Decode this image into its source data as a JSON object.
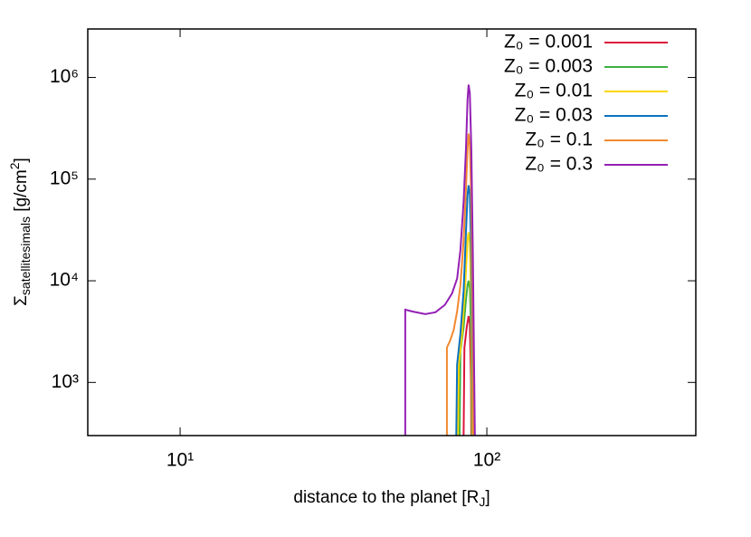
{
  "chart_data": {
    "type": "line",
    "xscale": "log",
    "yscale": "log",
    "xlim": [
      5,
      480
    ],
    "ylim": [
      300,
      3000000
    ],
    "xticks": [
      {
        "value": 10,
        "label": "10¹"
      },
      {
        "value": 100,
        "label": "10²"
      }
    ],
    "yticks": [
      {
        "value": 1000,
        "label": "10³"
      },
      {
        "value": 10000,
        "label": "10⁴"
      },
      {
        "value": 100000,
        "label": "10⁵"
      },
      {
        "value": 1000000,
        "label": "10⁶"
      }
    ],
    "x_label": [
      {
        "text": "distance to the planet [R"
      },
      {
        "text": "J",
        "sub": true
      },
      {
        "text": "]"
      }
    ],
    "y_label": [
      {
        "text": "Σ"
      },
      {
        "text": "satellitesimals",
        "sub": true
      },
      {
        "text": " [g/cm"
      },
      {
        "text": "2",
        "sup": true
      },
      {
        "text": "]"
      }
    ],
    "legend": "top-right",
    "series": [
      {
        "name": "Z₀ = 0.001",
        "color": "#dc143c",
        "x": [
          84,
          84.5,
          86,
          87.2,
          88,
          88.8,
          89
        ],
        "values": [
          300,
          2200,
          3500,
          4500,
          3800,
          1000,
          300
        ]
      },
      {
        "name": "Z₀ = 0.003",
        "color": "#3cb043",
        "x": [
          81.5,
          82,
          84,
          85.5,
          86.5,
          87.2,
          88,
          89,
          89.4
        ],
        "values": [
          300,
          2000,
          3500,
          6500,
          9000,
          10000,
          8500,
          2500,
          300
        ]
      },
      {
        "name": "Z₀ = 0.01",
        "color": "#ffd700",
        "x": [
          80.5,
          81,
          83,
          85,
          86.5,
          87.2,
          88,
          89,
          89.6
        ],
        "values": [
          300,
          1500,
          3000,
          9000,
          25000,
          30000,
          24000,
          5000,
          300
        ]
      },
      {
        "name": "Z₀ = 0.03",
        "color": "#0a72c0",
        "x": [
          79.5,
          80,
          82,
          84,
          85.5,
          86.5,
          87.2,
          88,
          89,
          89.8,
          90.1
        ],
        "values": [
          300,
          1500,
          3000,
          8000,
          30000,
          70000,
          87000,
          70000,
          15000,
          1000,
          300
        ]
      },
      {
        "name": "Z₀ = 0.1",
        "color": "#f28a30",
        "x": [
          74.1,
          74.1,
          76,
          78,
          80,
          82,
          84,
          85.5,
          86.5,
          87.2,
          88,
          89,
          89.8,
          90.3
        ],
        "values": [
          300,
          2200,
          2600,
          3300,
          5000,
          9000,
          25000,
          80000,
          200000,
          280000,
          220000,
          60000,
          5000,
          300
        ]
      },
      {
        "name": "Z₀ = 0.3",
        "color": "#9420b4",
        "x": [
          54.2,
          54.2,
          57,
          63,
          68,
          73,
          77,
          80,
          82,
          84,
          85.5,
          86.5,
          87.2,
          88,
          89,
          90,
          91,
          91.4
        ],
        "values": [
          300,
          5200,
          5000,
          4700,
          4900,
          5800,
          7500,
          10500,
          20000,
          60000,
          200000,
          600000,
          850000,
          700000,
          200000,
          20000,
          1000,
          300
        ]
      }
    ]
  }
}
